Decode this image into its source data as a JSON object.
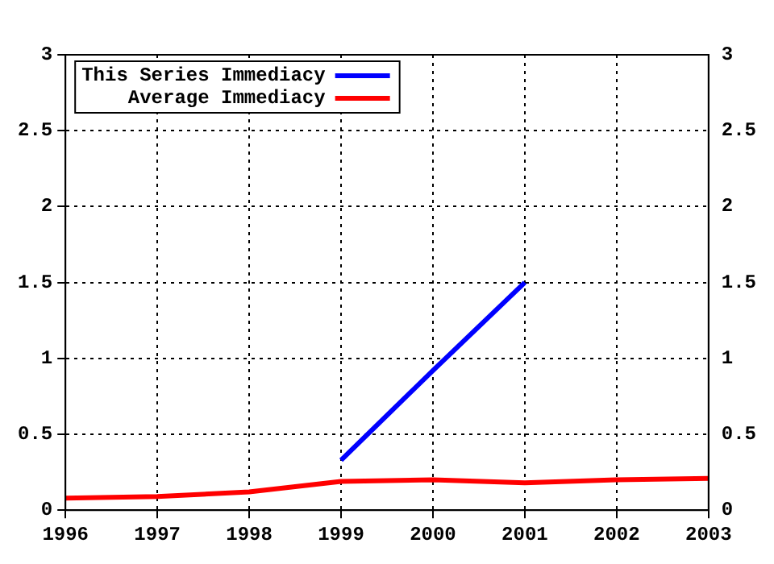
{
  "chart_data": {
    "type": "line",
    "x": [
      1996,
      1997,
      1998,
      1999,
      2000,
      2001,
      2002,
      2003
    ],
    "series": [
      {
        "name": "This Series Immediacy",
        "color": "#0000ff",
        "x": [
          1999,
          2000,
          2001
        ],
        "values": [
          0.33,
          0.92,
          1.5
        ]
      },
      {
        "name": "Average Immediacy",
        "color": "#ff0000",
        "values": [
          0.08,
          0.09,
          0.12,
          0.19,
          0.2,
          0.18,
          0.2,
          0.21
        ]
      }
    ],
    "xlim": [
      1996,
      2003
    ],
    "xticks": [
      1996,
      1997,
      1998,
      1999,
      2000,
      2001,
      2002,
      2003
    ],
    "ylim": [
      0,
      3
    ],
    "yticks": [
      0,
      0.5,
      1,
      1.5,
      2,
      2.5,
      3
    ],
    "y2lim": [
      0,
      3
    ],
    "y2ticks": [
      0,
      0.5,
      1,
      1.5,
      2,
      2.5,
      3
    ],
    "grid": true,
    "legend": "top left",
    "marker": "none",
    "line_style": "solid"
  }
}
